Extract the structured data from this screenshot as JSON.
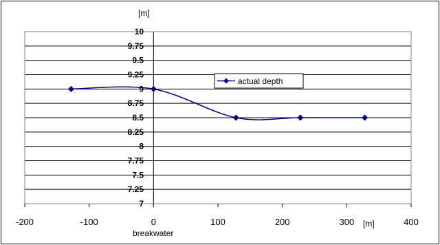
{
  "chart_data": {
    "type": "line",
    "ylabel": "[m]",
    "xlabel": "[m]",
    "x_annotation": "breakwater",
    "xlim": [
      -200,
      400
    ],
    "ylim": [
      7,
      10
    ],
    "x_ticks": [
      "-200",
      "-100",
      "0",
      "100",
      "200",
      "300",
      "400"
    ],
    "y_ticks": [
      "7",
      "7.25",
      "7.5",
      "7.75",
      "8",
      "8.25",
      "8.5",
      "8.75",
      "9",
      "9.25",
      "9.5",
      "9.75",
      "10"
    ],
    "grid": true,
    "legend_position": "center-right",
    "smooth": true,
    "series": [
      {
        "name": "actual depth",
        "color": "#000080",
        "marker": "diamond",
        "x": [
          -128,
          0,
          128,
          228,
          328
        ],
        "y": [
          9.0,
          9.0,
          8.5,
          8.5,
          8.5
        ]
      }
    ]
  }
}
